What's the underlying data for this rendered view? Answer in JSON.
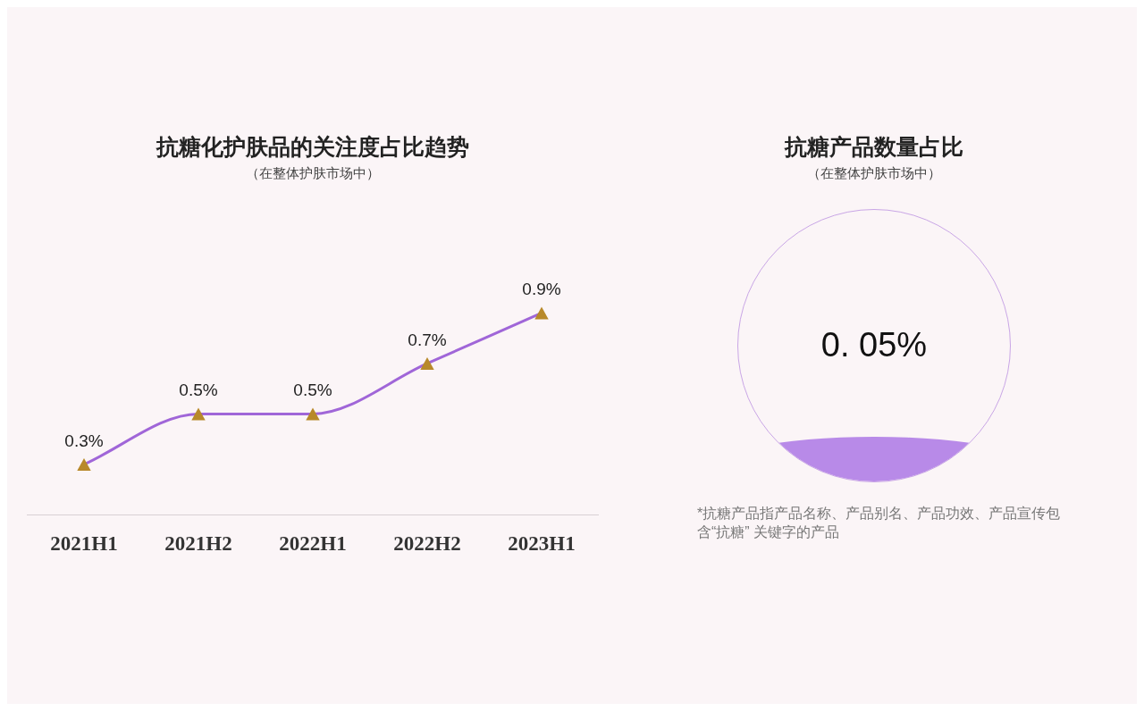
{
  "chart_data": [
    {
      "type": "line",
      "title": "抗糖化护肤品的关注度占比趋势",
      "subtitle": "（在整体护肤市场中）",
      "categories": [
        "2021H1",
        "2021H2",
        "2022H1",
        "2022H2",
        "2023H1"
      ],
      "series": [
        {
          "color": "#a066d8",
          "colors": [
            "#b8892a",
            "#b8892a",
            "#b8892a",
            "#b8892a",
            "#b8892a"
          ],
          "values": [
            0.3,
            0.5,
            0.5,
            0.7,
            0.9
          ],
          "value_labels": [
            "0.3%",
            "0.5%",
            "0.5%",
            "0.7%",
            "0.9%"
          ]
        }
      ],
      "marker": "triangle",
      "grid": false,
      "legend": false
    },
    {
      "type": "other",
      "title": "抗糖产品数量占比",
      "subtitle": "（在整体护肤市场中）",
      "value_labels": [
        "0. 05%"
      ],
      "colors": [
        "#b88ae8"
      ],
      "annotations": [
        "*抗糖产品指产品名称、产品别名、产品功效、产品宣传包含“抗糖” 关键字的产品"
      ]
    }
  ]
}
